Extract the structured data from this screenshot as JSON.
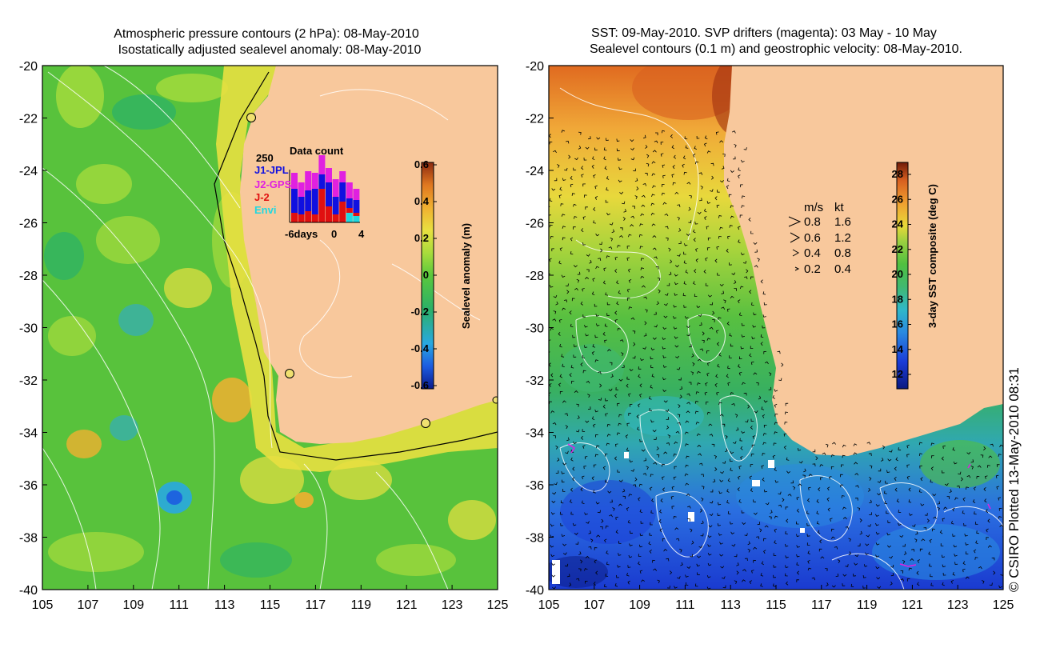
{
  "left_panel": {
    "title_line1": "Atmospheric pressure contours (2 hPa): 08-May-2010",
    "title_line2": "Isostatically adjusted sealevel anomaly: 08-May-2010",
    "x_ticks": [
      "105",
      "107",
      "109",
      "111",
      "113",
      "115",
      "117",
      "119",
      "121",
      "123",
      "125"
    ],
    "y_ticks": [
      "-20",
      "-22",
      "-24",
      "-26",
      "-28",
      "-30",
      "-32",
      "-34",
      "-36",
      "-38",
      "-40"
    ],
    "colorbar": {
      "label": "Sealevel anomaly (m)",
      "ticks": [
        "0.6",
        "0.4",
        "0.2",
        "0",
        "-0.2",
        "-0.4",
        "-0.6"
      ]
    },
    "inset": {
      "title": "Data count",
      "max_label": "250",
      "legend": [
        {
          "label": "J1-JPL",
          "color": "#1010e0"
        },
        {
          "label": "J2-GPS",
          "color": "#e020e0"
        },
        {
          "label": "J-2",
          "color": "#e01010"
        },
        {
          "label": "Envi",
          "color": "#20d8e0"
        }
      ],
      "x_labels": [
        "-6days",
        "0",
        "4"
      ]
    }
  },
  "right_panel": {
    "title_line1": "SST: 09-May-2010. SVP drifters (magenta): 03 May - 10 May",
    "title_line2": "Sealevel contours (0.1 m) and geostrophic velocity: 08-May-2010.",
    "x_ticks": [
      "105",
      "107",
      "109",
      "111",
      "113",
      "115",
      "117",
      "119",
      "121",
      "123",
      "125"
    ],
    "y_ticks": [
      "-20",
      "-22",
      "-24",
      "-26",
      "-28",
      "-30",
      "-32",
      "-34",
      "-36",
      "-38",
      "-40"
    ],
    "colorbar": {
      "label": "3-day SST composite (deg C)",
      "ticks": [
        "28",
        "26",
        "24",
        "22",
        "20",
        "18",
        "16",
        "14",
        "12"
      ]
    },
    "speed_legend": {
      "header_ms": "m/s",
      "header_kt": "kt",
      "rows": [
        {
          "ms": "0.8",
          "kt": "1.6"
        },
        {
          "ms": "0.6",
          "kt": "1.2"
        },
        {
          "ms": "0.4",
          "kt": "0.8"
        },
        {
          "ms": "0.2",
          "kt": "0.4"
        }
      ]
    }
  },
  "credit": "© CSIRO Plotted 13-May-2010 08:31",
  "colors": {
    "land": "#f8c89c",
    "sla_scale": [
      "#0a1a8c",
      "#1c5ce0",
      "#29a8e0",
      "#2ab068",
      "#5ac83c",
      "#a8dc3c",
      "#e8e040",
      "#f0b030",
      "#e07820",
      "#c04a18",
      "#8c2a10"
    ],
    "sst_scale": [
      "#0a1a80",
      "#1a3cd8",
      "#2a8ae0",
      "#30b8c8",
      "#40b870",
      "#50c040",
      "#9ad040",
      "#e8d838",
      "#f0a030",
      "#d86020",
      "#a03010",
      "#701c08"
    ]
  }
}
